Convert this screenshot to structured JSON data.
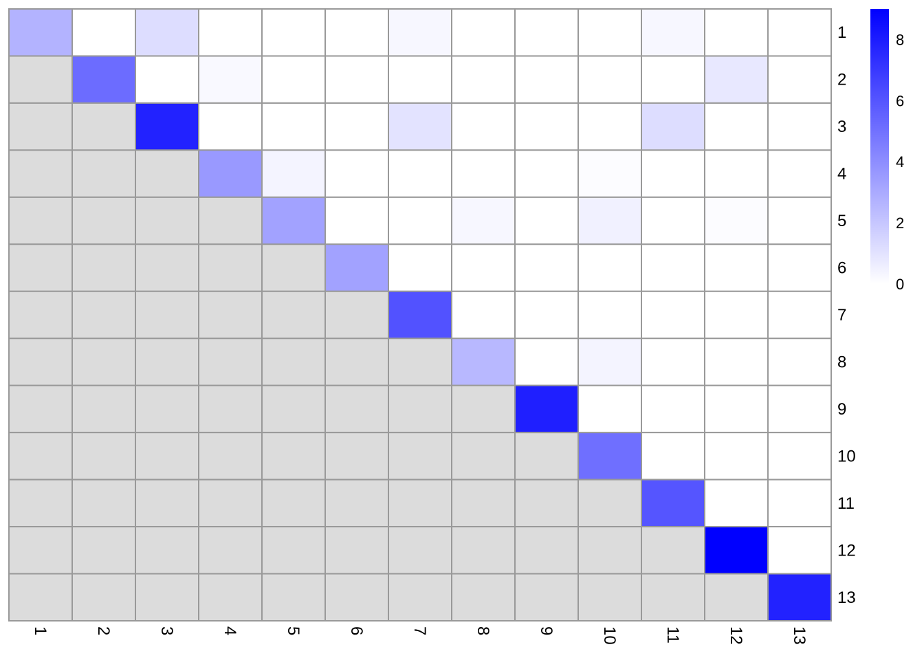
{
  "chart_data": {
    "type": "heatmap",
    "title": "",
    "xlabel": "",
    "ylabel": "",
    "row_labels": [
      "1",
      "2",
      "3",
      "4",
      "5",
      "6",
      "7",
      "8",
      "9",
      "10",
      "11",
      "12",
      "13"
    ],
    "col_labels": [
      "1",
      "2",
      "3",
      "4",
      "5",
      "6",
      "7",
      "8",
      "9",
      "10",
      "11",
      "12",
      "13"
    ],
    "values": [
      [
        2.7,
        0,
        1.2,
        0,
        0,
        0,
        0.3,
        0,
        0,
        0,
        0.3,
        0,
        0
      ],
      [
        null,
        5.2,
        0,
        0.2,
        0,
        0,
        0,
        0,
        0,
        0,
        0,
        0.8,
        0
      ],
      [
        null,
        null,
        7.8,
        0,
        0,
        0,
        1.0,
        0,
        0,
        0,
        1.2,
        0,
        0
      ],
      [
        null,
        null,
        null,
        3.6,
        0.4,
        0,
        0,
        0,
        0,
        0.1,
        0,
        0,
        0
      ],
      [
        null,
        null,
        null,
        null,
        3.3,
        0,
        0,
        0.3,
        0,
        0.5,
        0,
        0.1,
        0
      ],
      [
        null,
        null,
        null,
        null,
        null,
        3.3,
        0,
        0,
        0,
        0,
        0,
        0,
        0
      ],
      [
        null,
        null,
        null,
        null,
        null,
        null,
        6.1,
        0,
        0,
        0,
        0,
        0,
        0
      ],
      [
        null,
        null,
        null,
        null,
        null,
        null,
        null,
        2.5,
        0,
        0.4,
        0,
        0,
        0
      ],
      [
        null,
        null,
        null,
        null,
        null,
        null,
        null,
        null,
        7.9,
        0,
        0,
        0,
        0
      ],
      [
        null,
        null,
        null,
        null,
        null,
        null,
        null,
        null,
        null,
        5.1,
        0,
        0,
        0
      ],
      [
        null,
        null,
        null,
        null,
        null,
        null,
        null,
        null,
        null,
        null,
        6.0,
        0,
        0
      ],
      [
        null,
        null,
        null,
        null,
        null,
        null,
        null,
        null,
        null,
        null,
        null,
        9.0,
        0
      ],
      [
        null,
        null,
        null,
        null,
        null,
        null,
        null,
        null,
        null,
        null,
        null,
        null,
        7.8
      ]
    ],
    "color_scale": {
      "min": 0,
      "max": 9,
      "low_color": "#ffffff",
      "high_color": "#0000ff"
    },
    "na_color": "#dcdcdc",
    "grid_color": "#999999",
    "colorbar_ticks": [
      0,
      2,
      4,
      6,
      8
    ],
    "colorbar_tick_labels": [
      "0",
      "2",
      "4",
      "6",
      "8"
    ],
    "legend": "right",
    "row_labels_position": "right",
    "col_labels_rotation": "90"
  }
}
